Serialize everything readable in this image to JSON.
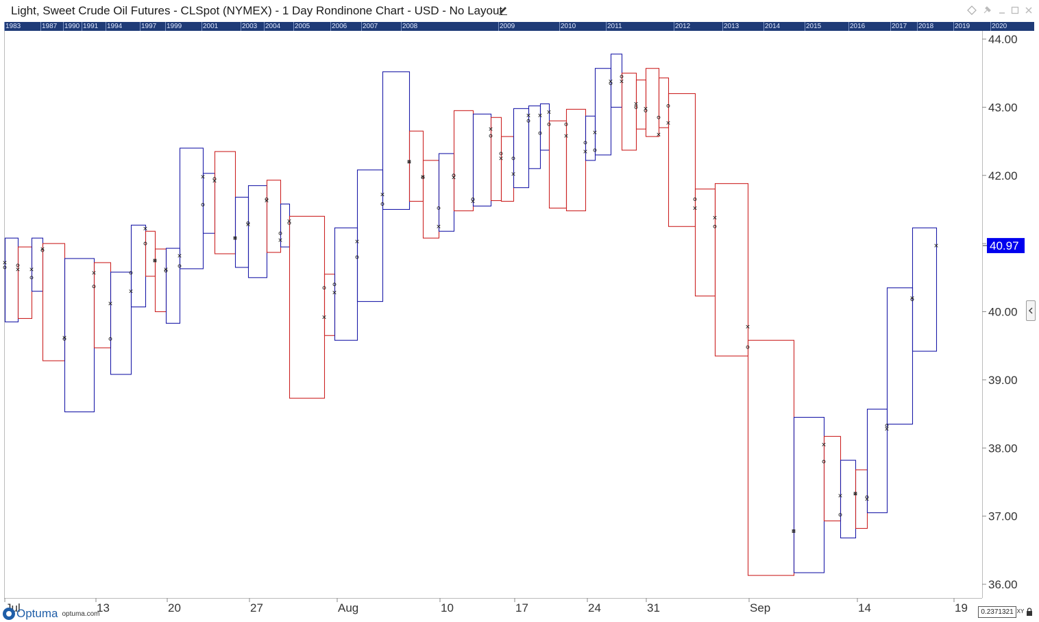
{
  "window": {
    "title": "Light, Sweet Crude Oil Futures - CLSpot (NYMEX) - 1 Day Rondinone Chart - USD - No Layout",
    "icons": [
      "diamond-icon",
      "pin-icon",
      "minimize-icon",
      "maximize-icon",
      "close-icon"
    ]
  },
  "year_strip": {
    "labels": [
      "1983",
      "1987",
      "1990",
      "1991",
      "1994",
      "1997",
      "1999",
      "2001",
      "2003",
      "2004",
      "2005",
      "2006",
      "2007",
      "2008",
      "2009",
      "2010",
      "2011",
      "2012",
      "2013",
      "2014",
      "2015",
      "2016",
      "2017",
      "2018",
      "2019",
      "2020"
    ]
  },
  "footer": {
    "logo_text": "Optuma",
    "logo_url": "optuma.com",
    "readout": "0.2371321",
    "xy_label": "XY"
  },
  "chart_data": {
    "type": "rondinone",
    "title": "Light, Sweet Crude Oil Futures - CLSpot (NYMEX) - 1 Day Rondinone Chart - USD - No Layout",
    "ylim": [
      35.8,
      44.15
    ],
    "yticks": [
      "36.00",
      "37.00",
      "38.00",
      "39.00",
      "40.00",
      "41.00",
      "42.00",
      "43.00",
      "44.00"
    ],
    "last_value": "40.97",
    "x_labels": [
      "Jul",
      "13",
      "20",
      "27",
      "Aug",
      "10",
      "17",
      "24",
      "31",
      "Sep",
      "14",
      "19"
    ],
    "grid": false,
    "colors": {
      "up": "#1a1aa8",
      "down": "#cc2222",
      "last_value_bg": "#0000ee"
    },
    "bars": [
      {
        "dir": "up",
        "low": 39.85,
        "high": 41.08,
        "o": 40.65,
        "c": 40.72
      },
      {
        "dir": "down",
        "low": 39.9,
        "high": 40.95,
        "o": 40.68,
        "c": 40.62
      },
      {
        "dir": "up",
        "low": 40.3,
        "high": 41.08,
        "o": 40.5,
        "c": 40.62
      },
      {
        "dir": "down",
        "low": 39.28,
        "high": 41.0,
        "o": 40.9,
        "c": 40.92
      },
      {
        "dir": "up",
        "low": 38.53,
        "high": 40.78,
        "o": 39.6,
        "c": 39.62
      },
      {
        "dir": "down",
        "low": 39.47,
        "high": 40.72,
        "o": 40.37,
        "c": 40.57
      },
      {
        "dir": "up",
        "low": 39.08,
        "high": 40.58,
        "o": 39.6,
        "c": 40.12
      },
      {
        "dir": "up",
        "low": 40.07,
        "high": 41.27,
        "o": 40.57,
        "c": 40.3
      },
      {
        "dir": "down",
        "low": 40.52,
        "high": 41.18,
        "o": 41.0,
        "c": 41.22
      },
      {
        "dir": "down",
        "low": 40.0,
        "high": 40.92,
        "o": 40.75,
        "c": 40.75
      },
      {
        "dir": "up",
        "low": 39.83,
        "high": 40.93,
        "o": 40.6,
        "c": 40.62
      },
      {
        "dir": "up",
        "low": 40.63,
        "high": 42.4,
        "o": 40.67,
        "c": 40.82
      },
      {
        "dir": "up",
        "low": 41.15,
        "high": 42.03,
        "o": 41.57,
        "c": 41.98
      },
      {
        "dir": "down",
        "low": 40.85,
        "high": 42.35,
        "o": 41.95,
        "c": 41.92
      },
      {
        "dir": "up",
        "low": 40.65,
        "high": 41.68,
        "o": 41.08,
        "c": 41.08
      },
      {
        "dir": "up",
        "low": 40.5,
        "high": 41.85,
        "o": 41.3,
        "c": 41.28
      },
      {
        "dir": "down",
        "low": 40.87,
        "high": 41.93,
        "o": 41.65,
        "c": 41.63
      },
      {
        "dir": "up",
        "low": 40.95,
        "high": 41.58,
        "o": 41.15,
        "c": 41.05
      },
      {
        "dir": "down",
        "low": 38.73,
        "high": 41.4,
        "o": 41.3,
        "c": 41.33
      },
      {
        "dir": "down",
        "low": 39.65,
        "high": 40.55,
        "o": 40.35,
        "c": 39.92
      },
      {
        "dir": "up",
        "low": 39.58,
        "high": 41.23,
        "o": 40.4,
        "c": 40.28
      },
      {
        "dir": "up",
        "low": 40.15,
        "high": 42.08,
        "o": 40.8,
        "c": 41.03
      },
      {
        "dir": "up",
        "low": 41.5,
        "high": 43.52,
        "o": 41.58,
        "c": 41.72
      },
      {
        "dir": "down",
        "low": 41.62,
        "high": 42.65,
        "o": 42.2,
        "c": 42.2
      },
      {
        "dir": "down",
        "low": 41.08,
        "high": 42.22,
        "o": 41.97,
        "c": 41.98
      },
      {
        "dir": "up",
        "low": 41.18,
        "high": 42.32,
        "o": 41.52,
        "c": 41.25
      },
      {
        "dir": "down",
        "low": 41.48,
        "high": 42.95,
        "o": 42.0,
        "c": 41.97
      },
      {
        "dir": "up",
        "low": 41.55,
        "high": 42.9,
        "o": 41.65,
        "c": 41.62
      },
      {
        "dir": "down",
        "low": 41.63,
        "high": 42.85,
        "o": 42.58,
        "c": 42.68
      },
      {
        "dir": "down",
        "low": 41.62,
        "high": 42.57,
        "o": 42.32,
        "c": 42.25
      },
      {
        "dir": "up",
        "low": 41.82,
        "high": 42.98,
        "o": 42.25,
        "c": 42.02
      },
      {
        "dir": "up",
        "low": 42.1,
        "high": 43.02,
        "o": 42.8,
        "c": 42.88
      },
      {
        "dir": "up",
        "low": 42.37,
        "high": 43.05,
        "o": 42.62,
        "c": 42.88
      },
      {
        "dir": "down",
        "low": 41.52,
        "high": 42.8,
        "o": 42.75,
        "c": 42.93
      },
      {
        "dir": "down",
        "low": 41.48,
        "high": 42.97,
        "o": 42.75,
        "c": 42.58
      },
      {
        "dir": "up",
        "low": 42.22,
        "high": 42.87,
        "o": 42.48,
        "c": 42.35
      },
      {
        "dir": "up",
        "low": 42.3,
        "high": 43.57,
        "o": 42.37,
        "c": 42.63
      },
      {
        "dir": "up",
        "low": 43.0,
        "high": 43.78,
        "o": 43.35,
        "c": 43.38
      },
      {
        "dir": "down",
        "low": 42.37,
        "high": 43.5,
        "o": 43.45,
        "c": 43.38
      },
      {
        "dir": "down",
        "low": 42.68,
        "high": 43.4,
        "o": 43.0,
        "c": 43.05
      },
      {
        "dir": "down",
        "low": 42.57,
        "high": 43.57,
        "o": 42.95,
        "c": 42.98
      },
      {
        "dir": "down",
        "low": 42.7,
        "high": 43.43,
        "o": 42.85,
        "c": 42.6
      },
      {
        "dir": "down",
        "low": 41.25,
        "high": 43.2,
        "o": 43.02,
        "c": 42.77
      },
      {
        "dir": "down",
        "low": 40.23,
        "high": 41.8,
        "o": 41.65,
        "c": 41.52
      },
      {
        "dir": "down",
        "low": 39.35,
        "high": 41.88,
        "o": 41.25,
        "c": 41.38
      },
      {
        "dir": "down",
        "low": 36.13,
        "high": 39.58,
        "o": 39.48,
        "c": 39.78
      },
      {
        "dir": "up",
        "low": 36.17,
        "high": 38.45,
        "o": 36.78,
        "c": 36.78
      },
      {
        "dir": "down",
        "low": 36.93,
        "high": 38.17,
        "o": 37.8,
        "c": 38.05
      },
      {
        "dir": "up",
        "low": 36.68,
        "high": 37.82,
        "o": 37.02,
        "c": 37.3
      },
      {
        "dir": "down",
        "low": 36.82,
        "high": 37.68,
        "o": 37.33,
        "c": 37.33
      },
      {
        "dir": "up",
        "low": 37.05,
        "high": 38.57,
        "o": 37.28,
        "c": 37.25
      },
      {
        "dir": "up",
        "low": 38.35,
        "high": 40.35,
        "o": 38.33,
        "c": 38.28
      },
      {
        "dir": "up",
        "low": 39.42,
        "high": 41.23,
        "o": 40.18,
        "c": 40.2
      },
      {
        "dir": "none",
        "low": null,
        "high": null,
        "o": null,
        "c": 40.97
      }
    ]
  }
}
